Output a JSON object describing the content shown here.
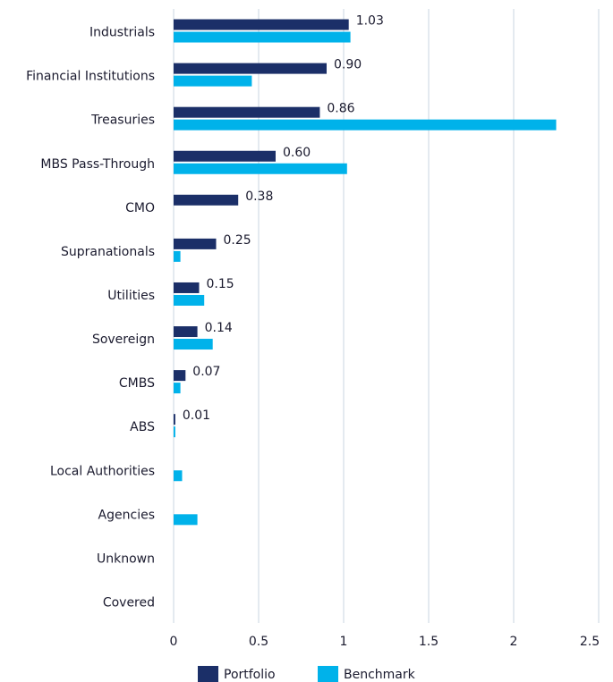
{
  "chart_data": {
    "type": "hbar",
    "categories": [
      "Industrials",
      "Financial Institutions",
      "Treasuries",
      "MBS Pass-Through",
      "CMO",
      "Supranationals",
      "Utilities",
      "Sovereign",
      "CMBS",
      "ABS",
      "Local Authorities",
      "Agencies",
      "Unknown",
      "Covered"
    ],
    "series": [
      {
        "name": "Portfolio",
        "color": "#1b2f68",
        "values": [
          1.03,
          0.9,
          0.86,
          0.6,
          0.38,
          0.25,
          0.15,
          0.14,
          0.07,
          0.01,
          null,
          null,
          null,
          null
        ],
        "value_labels": [
          "1.03",
          "0.90",
          "0.86",
          "0.60",
          "0.38",
          "0.25",
          "0.15",
          "0.14",
          "0.07",
          "0.01",
          null,
          null,
          null,
          null
        ]
      },
      {
        "name": "Benchmark",
        "color": "#00b2ea",
        "values": [
          1.04,
          0.46,
          2.25,
          1.02,
          0,
          0.04,
          0.18,
          0.23,
          0.04,
          0.01,
          0.05,
          0.14,
          0,
          0
        ]
      }
    ],
    "xlim": [
      0,
      2.5
    ],
    "xticks": [
      0,
      0.5,
      1,
      1.5,
      2,
      2.5
    ],
    "grid": true,
    "legend": "bottom"
  }
}
